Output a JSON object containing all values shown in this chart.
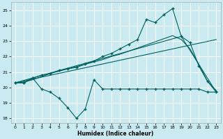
{
  "xlabel": "Humidex (Indice chaleur)",
  "bg_color": "#c8eaf0",
  "grid_color": "#ffffff",
  "line_color": "#006060",
  "xlim": [
    -0.5,
    23.5
  ],
  "ylim": [
    17.7,
    25.5
  ],
  "xticks": [
    0,
    1,
    2,
    3,
    4,
    5,
    6,
    7,
    8,
    9,
    10,
    11,
    12,
    13,
    14,
    15,
    16,
    17,
    18,
    19,
    20,
    21,
    22,
    23
  ],
  "yticks": [
    18,
    19,
    20,
    21,
    22,
    23,
    24,
    25
  ],
  "curve_x": [
    0,
    1,
    2,
    3,
    4,
    5,
    6,
    7,
    8,
    9,
    10,
    11,
    12,
    13,
    14,
    15,
    16,
    17,
    18,
    19,
    20,
    21,
    22,
    23
  ],
  "curve_y": [
    20.3,
    20.3,
    20.6,
    20.8,
    20.9,
    21.1,
    21.2,
    21.3,
    21.5,
    21.7,
    22.0,
    22.2,
    22.5,
    22.8,
    23.1,
    24.4,
    24.2,
    24.7,
    25.1,
    23.3,
    22.9,
    21.4,
    20.4,
    19.7
  ],
  "smooth_x": [
    0,
    1,
    2,
    3,
    4,
    5,
    6,
    7,
    8,
    9,
    10,
    11,
    12,
    13,
    14,
    15,
    16,
    17,
    18,
    19,
    20,
    21,
    22,
    23
  ],
  "smooth_y": [
    20.3,
    20.35,
    20.5,
    20.7,
    20.9,
    21.05,
    21.2,
    21.35,
    21.5,
    21.65,
    21.8,
    22.0,
    22.15,
    22.35,
    22.55,
    22.75,
    22.95,
    23.15,
    23.35,
    23.1,
    22.5,
    21.5,
    20.4,
    19.8
  ],
  "trend_x": [
    0,
    23
  ],
  "trend_y": [
    20.3,
    23.1
  ],
  "trend2_x": [
    0,
    19,
    23
  ],
  "trend2_y": [
    20.3,
    23.3,
    19.7
  ],
  "lower_x": [
    0,
    1,
    2,
    3,
    4,
    5,
    6,
    7,
    8,
    9,
    10,
    11,
    12,
    13,
    14,
    15,
    16,
    17,
    18,
    19,
    20,
    21,
    22,
    23
  ],
  "lower_y": [
    20.3,
    20.3,
    20.6,
    19.9,
    19.7,
    19.3,
    18.7,
    18.0,
    18.6,
    20.5,
    19.9,
    19.9,
    19.9,
    19.9,
    19.9,
    19.9,
    19.9,
    19.9,
    19.9,
    19.9,
    19.9,
    19.9,
    19.7,
    19.7
  ]
}
